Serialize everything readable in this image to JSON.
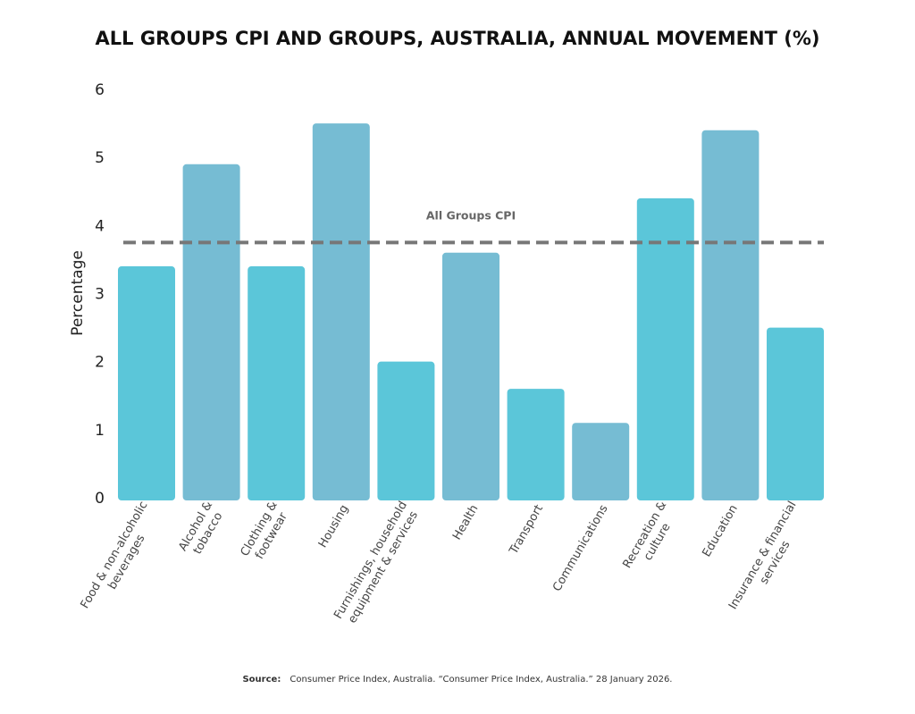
{
  "chart_data": {
    "type": "bar",
    "title": "ALL GROUPS CPI AND GROUPS, AUSTRALIA, ANNUAL MOVEMENT (%)",
    "xlabel": "",
    "ylabel": "Percentage",
    "ylim": [
      0,
      6
    ],
    "yticks": [
      "0",
      "1",
      "2",
      "3",
      "4",
      "5",
      "6"
    ],
    "grid": false,
    "categories": [
      [
        "Food & non-alcoholic",
        "beverages"
      ],
      [
        "Alcohol &",
        "tobacco"
      ],
      [
        "Clothing &",
        "footwear"
      ],
      [
        "Housing"
      ],
      [
        "Furnishings, household",
        "equipment & services"
      ],
      [
        "Health"
      ],
      [
        "Transport"
      ],
      [
        "Communications"
      ],
      [
        "Recreation &",
        "culture"
      ],
      [
        "Education"
      ],
      [
        "Insurance & financial",
        "services"
      ]
    ],
    "values": [
      3.4,
      4.9,
      3.4,
      5.5,
      2.0,
      3.6,
      1.6,
      1.1,
      4.4,
      5.4,
      2.5
    ],
    "colors": [
      "#5BC6D9",
      "#76BCD3"
    ],
    "reference_line": {
      "label": "All Groups CPI",
      "value": 3.75,
      "color": "#777777"
    }
  },
  "source": {
    "label": "Source:",
    "text": "Consumer Price Index, Australia. “Consumer Price Index, Australia.” 28 January 2026."
  }
}
